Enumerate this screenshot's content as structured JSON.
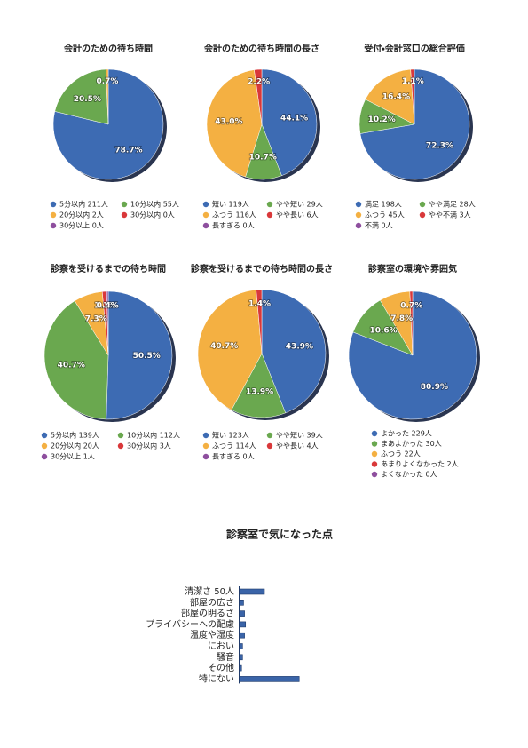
{
  "chart_data": [
    {
      "type": "pie",
      "title": "会計のための待ち時間",
      "categories": [
        "5分以内 211人",
        "10分以内 55人",
        "20分以内 2人",
        "30分以内 0人",
        "30分以上 0人"
      ],
      "values": [
        78.7,
        20.5,
        0.7,
        0,
        0
      ],
      "value_labels": [
        "78.7%",
        "20.5%",
        "0.7%",
        null,
        null
      ],
      "colors": [
        "#3d6bb3",
        "#6aa84f",
        "#f4b042",
        "#d9383a",
        "#8e4f9e"
      ]
    },
    {
      "type": "pie",
      "title": "会計のための待ち時間の長さ",
      "categories": [
        "短い 119人",
        "やや短い 29人",
        "ふつう 116人",
        "やや長い 6人",
        "長すぎる 0人"
      ],
      "values": [
        44.1,
        10.7,
        43.0,
        2.2,
        0
      ],
      "value_labels": [
        "44.1%",
        "10.7%",
        "43.0%",
        "2.2%",
        null
      ],
      "colors": [
        "#3d6bb3",
        "#6aa84f",
        "#f4b042",
        "#d9383a",
        "#8e4f9e"
      ]
    },
    {
      "type": "pie",
      "title": "受付・会計窓口の総合評価",
      "categories": [
        "満足 198人",
        "やや満足 28人",
        "ふつう 45人",
        "やや不満 3人",
        "不満 0人"
      ],
      "values": [
        72.3,
        10.2,
        16.4,
        1.1,
        0
      ],
      "value_labels": [
        "72.3%",
        "10.2%",
        "16.4%",
        "1.1%",
        null
      ],
      "colors": [
        "#3d6bb3",
        "#6aa84f",
        "#f4b042",
        "#d9383a",
        "#8e4f9e"
      ]
    },
    {
      "type": "pie",
      "title": "診察を受けるまでの待ち時間",
      "categories": [
        "5分以内 139人",
        "10分以内 112人",
        "20分以内 20人",
        "30分以内 3人",
        "30分以上 1人"
      ],
      "values": [
        50.5,
        40.7,
        7.3,
        1.1,
        0.4
      ],
      "value_labels": [
        "50.5%",
        "40.7%",
        "7.3%",
        "1.1%",
        "0.4%"
      ],
      "colors": [
        "#3d6bb3",
        "#6aa84f",
        "#f4b042",
        "#d9383a",
        "#8e4f9e"
      ]
    },
    {
      "type": "pie",
      "title": "診察を受けるまでの待ち時間の長さ",
      "categories": [
        "短い 123人",
        "やや短い 39人",
        "ふつう 114人",
        "やや長い 4人",
        "長すぎる 0人"
      ],
      "values": [
        43.9,
        13.9,
        40.7,
        1.4,
        0
      ],
      "value_labels": [
        "43.9%",
        "13.9%",
        "40.7%",
        "1.4%",
        null
      ],
      "colors": [
        "#3d6bb3",
        "#6aa84f",
        "#f4b042",
        "#d9383a",
        "#8e4f9e"
      ]
    },
    {
      "type": "pie",
      "title": "診察室の環境や雰囲気",
      "categories": [
        "よかった 229人",
        "まあよかった 30人",
        "ふつう 22人",
        "あまりよくなかった 2人",
        "よくなかった 0人"
      ],
      "values": [
        80.9,
        10.6,
        7.8,
        0.7,
        0
      ],
      "value_labels": [
        "80.9%",
        "10.6%",
        "7.8%",
        "0.7%",
        null
      ],
      "colors": [
        "#3d6bb3",
        "#6aa84f",
        "#f4b042",
        "#d9383a",
        "#8e4f9e"
      ]
    },
    {
      "type": "bar",
      "orientation": "horizontal",
      "title": "診察室で気になった点",
      "categories": [
        "清潔さ 50人",
        "部屋の広さ",
        "部屋の明るさ",
        "プライバシーへの配慮",
        "温度や湿度",
        "におい",
        "騒音",
        "その他",
        "特にない"
      ],
      "values": [
        50,
        8,
        10,
        12,
        10,
        6,
        6,
        4,
        120
      ],
      "color": "#3a64a8"
    }
  ]
}
